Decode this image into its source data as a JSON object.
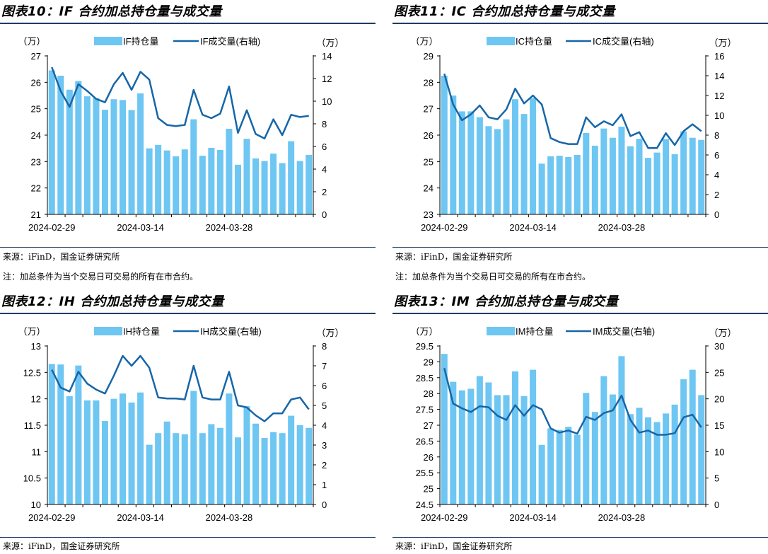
{
  "colors": {
    "bar": "#6ec6f2",
    "line": "#1666a8",
    "rule": "#1f3b64",
    "axis": "#000000"
  },
  "chart_data": [
    {
      "type": "bar",
      "title": "图表10：IF 合约加总持仓量与成交量",
      "source": "来源：iFinD，国金证券研究所",
      "note": "注：加总条件为当个交易日可交易的所有在市合约。",
      "left_unit": "（万）",
      "right_unit": "（万）",
      "ylim": [
        21,
        27
      ],
      "yticks": [
        21,
        22,
        23,
        24,
        25,
        26,
        27
      ],
      "y2lim": [
        0,
        14
      ],
      "y2ticks": [
        0,
        2,
        4,
        6,
        8,
        10,
        12,
        14
      ],
      "xtick_labels": [
        "2024-02-29",
        "2024-03-14",
        "2024-03-28"
      ],
      "xtick_index": [
        0,
        10,
        20
      ],
      "legend_position": "top",
      "series": [
        {
          "name": "IF持仓量",
          "kind": "bar",
          "axis": "left",
          "values": [
            26.45,
            26.25,
            25.72,
            26.05,
            25.47,
            25.4,
            24.96,
            25.36,
            25.33,
            24.95,
            25.58,
            23.5,
            23.63,
            23.42,
            23.2,
            23.46,
            24.6,
            23.22,
            23.52,
            23.44,
            24.24,
            22.88,
            23.86,
            23.12,
            23.02,
            23.3,
            22.94,
            23.77,
            23.02,
            23.25
          ]
        },
        {
          "name": "IF成交量(右轴)",
          "kind": "line",
          "axis": "right",
          "values": [
            13.0,
            10.9,
            9.5,
            11.5,
            10.9,
            10.2,
            9.9,
            11.5,
            12.5,
            11.0,
            12.6,
            11.9,
            8.5,
            7.9,
            7.8,
            7.9,
            11.0,
            8.8,
            8.5,
            8.9,
            11.3,
            7.2,
            9.2,
            7.1,
            6.7,
            8.4,
            7.0,
            8.8,
            8.6,
            8.7
          ]
        }
      ]
    },
    {
      "type": "bar",
      "title": "图表11：IC 合约加总持仓量与成交量",
      "source": "来源：iFinD，国金证券研究所",
      "note": "注：加总条件为当个交易日可交易的所有在市合约。",
      "left_unit": "（万）",
      "right_unit": "（万）",
      "ylim": [
        23,
        29
      ],
      "yticks": [
        23,
        24,
        25,
        26,
        27,
        28,
        29
      ],
      "y2lim": [
        0,
        16
      ],
      "y2ticks": [
        0,
        2,
        4,
        6,
        8,
        10,
        12,
        14,
        16
      ],
      "xtick_labels": [
        "2024-02-29",
        "2024-03-14",
        "2024-03-28"
      ],
      "xtick_index": [
        0,
        10,
        20
      ],
      "legend_position": "top",
      "series": [
        {
          "name": "IC持仓量",
          "kind": "bar",
          "axis": "left",
          "values": [
            28.25,
            27.5,
            26.9,
            26.9,
            26.68,
            26.34,
            26.23,
            26.6,
            27.36,
            26.8,
            27.4,
            24.92,
            25.2,
            25.22,
            25.17,
            25.25,
            26.08,
            25.6,
            26.25,
            25.9,
            26.32,
            25.58,
            25.86,
            25.14,
            25.34,
            25.85,
            25.28,
            26.14,
            25.9,
            25.82
          ]
        },
        {
          "name": "IC成交量(右轴)",
          "kind": "line",
          "axis": "right",
          "values": [
            14.2,
            11.1,
            9.5,
            10.1,
            11.0,
            9.8,
            9.6,
            10.6,
            12.7,
            11.2,
            12.0,
            11.1,
            7.7,
            7.3,
            7.1,
            7.1,
            9.8,
            8.8,
            9.4,
            9.0,
            10.1,
            7.9,
            8.3,
            6.7,
            6.7,
            8.2,
            7.0,
            8.4,
            9.1,
            8.4
          ]
        }
      ]
    },
    {
      "type": "bar",
      "title": "图表12：IH 合约加总持仓量与成交量",
      "source": "来源：iFinD，国金证券研究所",
      "left_unit": "（万）",
      "right_unit": "（万）",
      "ylim": [
        10,
        13
      ],
      "yticks": [
        10,
        10.5,
        11,
        11.5,
        12,
        12.5,
        13
      ],
      "y2lim": [
        0,
        8
      ],
      "y2ticks": [
        0,
        1,
        2,
        3,
        4,
        5,
        6,
        7,
        8
      ],
      "xtick_labels": [
        "2024-02-29",
        "2024-03-14",
        "2024-03-28"
      ],
      "xtick_index": [
        0,
        10,
        20
      ],
      "legend_position": "top",
      "series": [
        {
          "name": "IH持仓量",
          "kind": "bar",
          "axis": "left",
          "values": [
            12.66,
            12.65,
            12.05,
            12.63,
            11.97,
            11.97,
            11.58,
            12.0,
            12.1,
            11.93,
            12.12,
            11.13,
            11.35,
            11.57,
            11.35,
            11.33,
            12.15,
            11.35,
            11.52,
            11.45,
            12.1,
            11.27,
            11.86,
            11.53,
            11.26,
            11.37,
            11.35,
            11.68,
            11.5,
            11.45
          ]
        },
        {
          "name": "IH成交量(右轴)",
          "kind": "line",
          "axis": "right",
          "values": [
            6.8,
            5.9,
            5.7,
            6.7,
            6.1,
            5.8,
            5.6,
            6.5,
            7.5,
            7.0,
            7.5,
            6.9,
            5.4,
            5.35,
            5.35,
            5.3,
            7.0,
            5.4,
            5.3,
            5.3,
            6.7,
            5.0,
            4.9,
            4.5,
            4.2,
            4.6,
            4.6,
            5.3,
            5.4,
            4.8
          ]
        }
      ]
    },
    {
      "type": "bar",
      "title": "图表13：IM 合约加总持仓量与成交量",
      "source": "来源：iFinD，国金证券研究所",
      "left_unit": "（万）",
      "right_unit": "（万）",
      "ylim": [
        24.5,
        29.5
      ],
      "yticks": [
        24.5,
        25,
        25.5,
        26,
        26.5,
        27,
        27.5,
        28,
        28.5,
        29,
        29.5
      ],
      "y2lim": [
        0,
        30
      ],
      "y2ticks": [
        0,
        5,
        10,
        15,
        20,
        25,
        30
      ],
      "xtick_labels": [
        "2024-02-29",
        "2024-03-14",
        "2024-03-28"
      ],
      "xtick_index": [
        0,
        10,
        20
      ],
      "legend_position": "top",
      "series": [
        {
          "name": "IM持仓量",
          "kind": "bar",
          "axis": "left",
          "values": [
            29.25,
            28.37,
            28.1,
            28.15,
            28.55,
            28.35,
            27.95,
            27.95,
            28.7,
            27.92,
            28.75,
            26.38,
            26.9,
            26.85,
            26.95,
            26.7,
            28.02,
            27.42,
            28.55,
            27.97,
            29.18,
            27.35,
            27.55,
            27.25,
            27.1,
            27.37,
            27.65,
            28.45,
            28.75,
            27.95
          ]
        },
        {
          "name": "IM成交量(右轴)",
          "kind": "line",
          "axis": "right",
          "values": [
            25.8,
            19.1,
            18.2,
            17.5,
            18.6,
            18.4,
            16.8,
            16.0,
            18.8,
            16.8,
            18.8,
            18.0,
            14.4,
            13.6,
            14.0,
            13.4,
            16.6,
            16.0,
            17.3,
            17.8,
            20.6,
            16.0,
            13.6,
            14.0,
            13.2,
            13.2,
            13.5,
            16.5,
            17.0,
            14.6
          ]
        }
      ]
    }
  ]
}
